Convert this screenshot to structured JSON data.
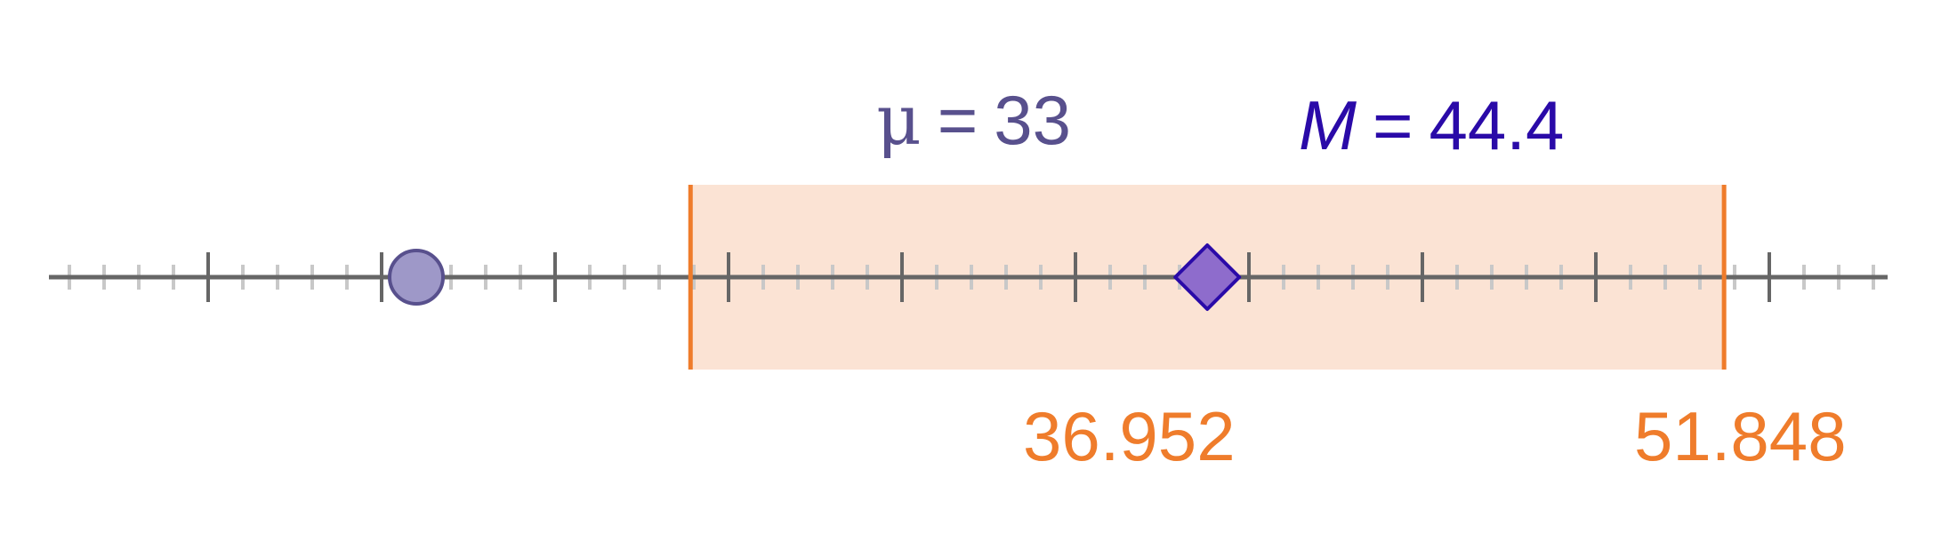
{
  "number_line": {
    "min": 28,
    "max": 54,
    "major_step": 2.5,
    "minor_step": 0.5,
    "axis_color": "#666666",
    "minor_tick_color": "#c8c8c8"
  },
  "population_mean": {
    "symbol": "μ",
    "equals": "=",
    "value_text": "33",
    "value": 33,
    "label_color": "#58508d",
    "marker_fill": "#9e98c8",
    "marker_stroke": "#58508d",
    "marker_shape": "circle"
  },
  "sample_mean": {
    "symbol": "M",
    "equals": "=",
    "value_text": "44.4",
    "value": 44.4,
    "label_color": "#2a0aa8",
    "marker_fill": "#8e6ccc",
    "marker_stroke": "#2a0aa8",
    "marker_shape": "diamond"
  },
  "interval": {
    "lower_text": "36.952",
    "upper_text": "51.848",
    "lower": 36.952,
    "upper": 51.848,
    "fill": "#fbe3d4",
    "edge_color": "#ef7c2b",
    "label_color": "#ef7c2b"
  }
}
